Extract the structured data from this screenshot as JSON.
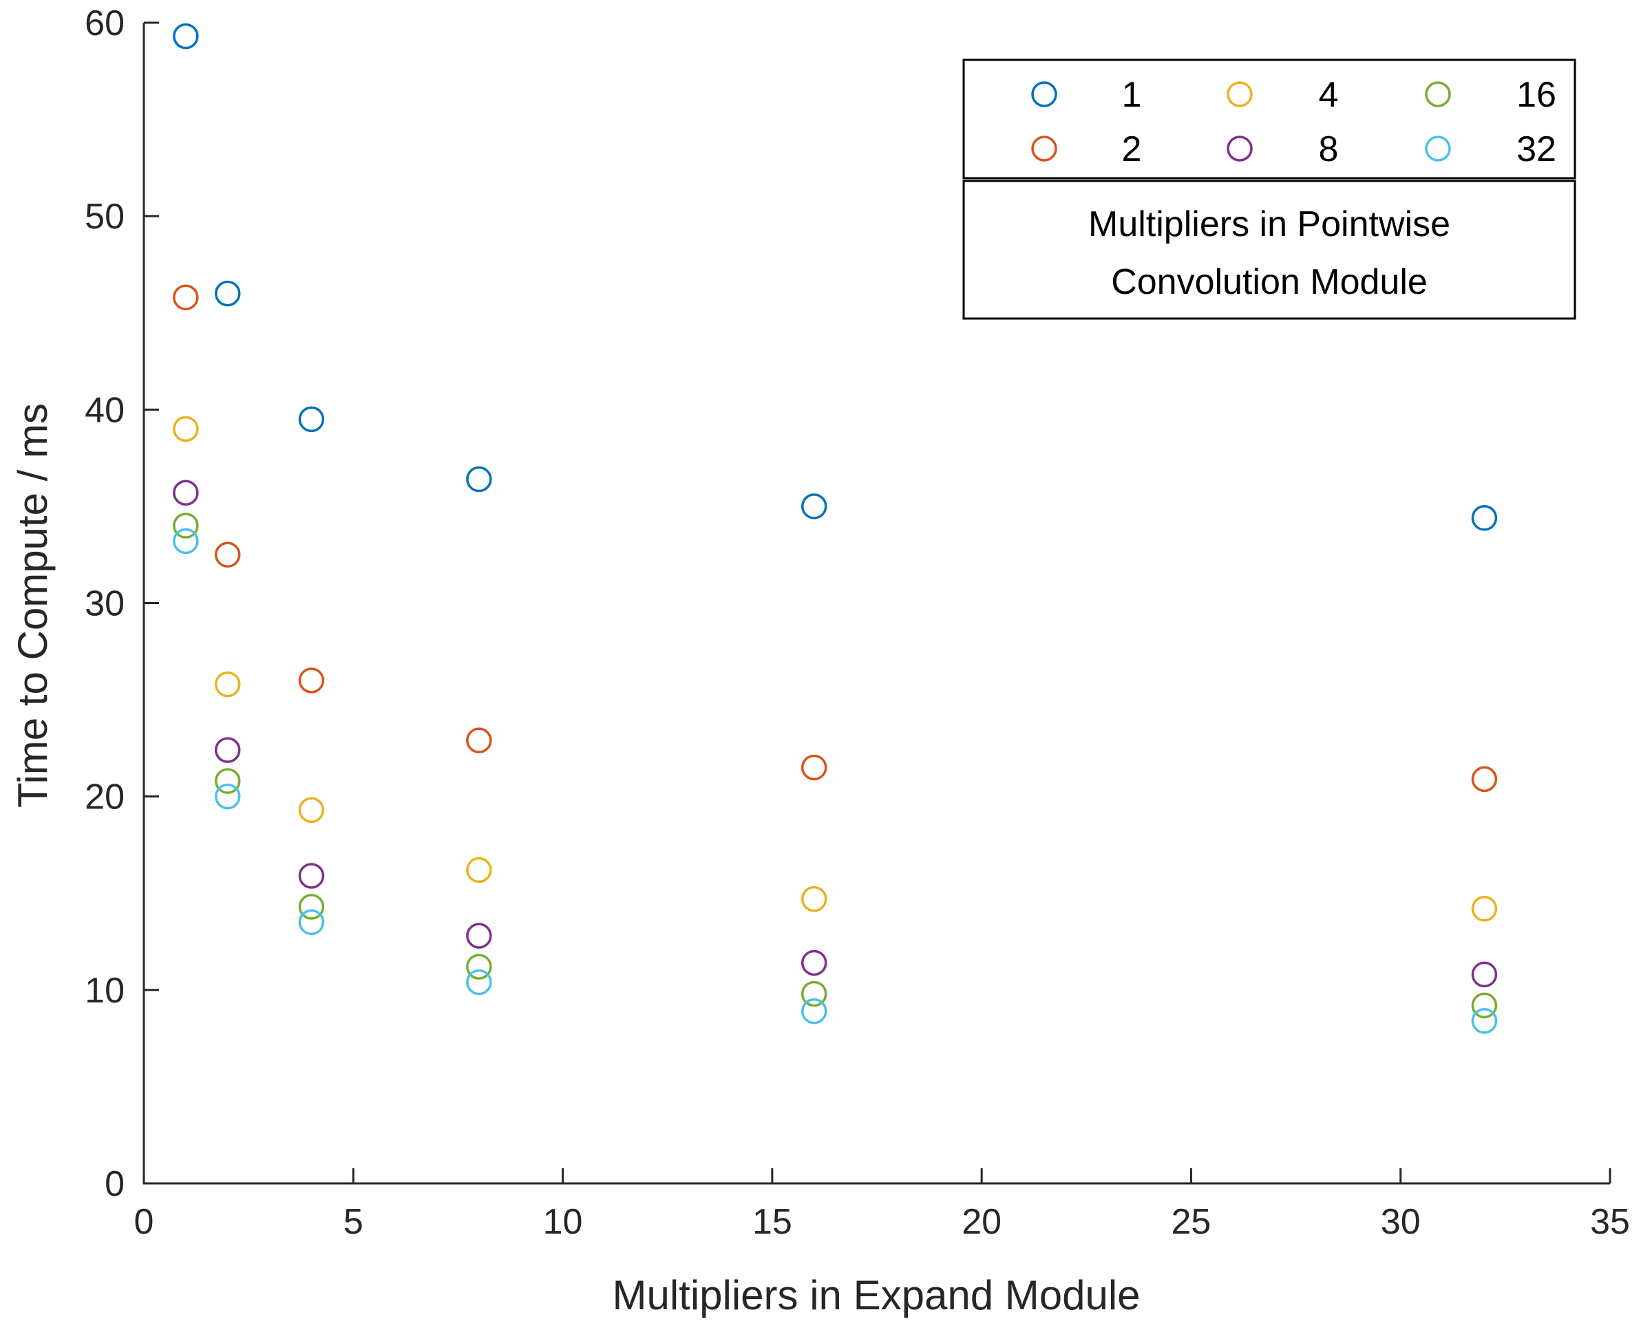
{
  "chart_data": {
    "type": "scatter",
    "title": "",
    "xlabel": "Multipliers in Expand Module",
    "ylabel": "Time to Compute / ms",
    "xlim": [
      0,
      35
    ],
    "ylim": [
      0,
      60
    ],
    "xticks": [
      "0",
      "5",
      "10",
      "15",
      "20",
      "25",
      "30",
      "35"
    ],
    "yticks": [
      "0",
      "10",
      "20",
      "30",
      "40",
      "50",
      "60"
    ],
    "grid": false,
    "legend": {
      "title_lines": [
        "Multipliers in Pointwise",
        "Convolution Module"
      ],
      "placement": "top-right",
      "columns": 3
    },
    "marker": "open-circle",
    "x": [
      1,
      2,
      4,
      8,
      16,
      32
    ],
    "series": [
      {
        "name": "1",
        "color": "#0072BD",
        "values": [
          59.3,
          46.0,
          39.5,
          36.4,
          35.0,
          34.4
        ]
      },
      {
        "name": "2",
        "color": "#D95319",
        "values": [
          45.8,
          32.5,
          26.0,
          22.9,
          21.5,
          20.9
        ]
      },
      {
        "name": "4",
        "color": "#EDB120",
        "values": [
          39.0,
          25.8,
          19.3,
          16.2,
          14.7,
          14.2
        ]
      },
      {
        "name": "8",
        "color": "#7E2F8E",
        "values": [
          35.7,
          22.4,
          15.9,
          12.8,
          11.4,
          10.8
        ]
      },
      {
        "name": "16",
        "color": "#77AC30",
        "values": [
          34.0,
          20.8,
          14.3,
          11.2,
          9.8,
          9.2
        ]
      },
      {
        "name": "32",
        "color": "#4DBEEE",
        "values": [
          33.2,
          20.0,
          13.5,
          10.4,
          8.9,
          8.4
        ]
      }
    ]
  }
}
